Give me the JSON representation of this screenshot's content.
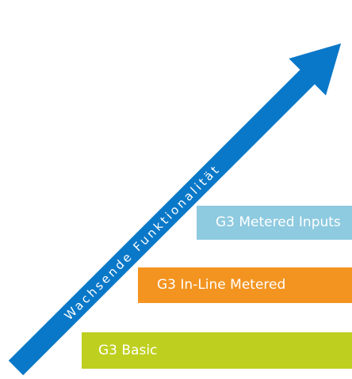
{
  "diagram": {
    "arrow": {
      "label": "Wachsende Funktionalität",
      "color": "#0a78c8"
    },
    "tiers": [
      {
        "id": "basic",
        "label": "G3 Basic",
        "color": "#bfcf1f"
      },
      {
        "id": "inline",
        "label": "G3 In-Line Metered",
        "color": "#f39420"
      },
      {
        "id": "metered",
        "label": "G3 Metered Inputs",
        "color": "#8ecae0"
      }
    ]
  }
}
